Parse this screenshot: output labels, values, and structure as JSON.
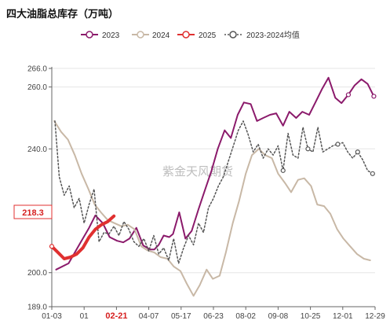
{
  "chart_data": {
    "type": "line",
    "title": "四大油脂总库存（万吨）",
    "watermark": "紫金天风期货",
    "ylim": [
      189,
      266
    ],
    "y_ticks": [
      189.0,
      200.0,
      240.0,
      260.0,
      266.0
    ],
    "x_tick_labels": [
      "01-03",
      "01",
      "02-21",
      "04-07",
      "05-17",
      "06-23",
      "08-02",
      "09-08",
      "10-25",
      "12-01",
      "12-29"
    ],
    "highlight_x_label": "02-21",
    "highlight_value_label": "218.3",
    "legend": [
      "2023",
      "2024",
      "2025",
      "2023-2024均值"
    ],
    "colors": {
      "2023": "#8b1a6b",
      "2024": "#c8b8a6",
      "2025": "#e03030",
      "avg": "#555555",
      "grid": "#e6e6e6",
      "axis": "#666666"
    },
    "x_domain": [
      0,
      52
    ],
    "series": [
      {
        "name": "2023",
        "x": [
          0.7,
          2.7,
          4.7,
          6,
          7,
          8.2,
          9.3,
          10.5,
          11.5,
          12.5,
          13.6,
          14.7,
          15.8,
          16.5,
          17.2,
          18,
          18.9,
          19.5,
          20.5,
          21.5,
          22.5,
          23.6,
          24.6,
          25.7,
          26.7,
          27.8,
          28.8,
          29.9,
          30.9,
          32,
          33,
          34,
          35.1,
          36.1,
          37.2,
          38.2,
          39.3,
          40.3,
          41.4,
          42.4,
          43.5,
          44.5,
          45.6,
          46.6,
          47.7,
          48.7,
          49.8,
          50.8,
          51.8
        ],
        "values": [
          201,
          203,
          210,
          214.5,
          218.5,
          216,
          211.5,
          210.3,
          209.8,
          211,
          214.5,
          208.8,
          207.5,
          207.5,
          209,
          212,
          211.5,
          212.5,
          219.5,
          211,
          213.5,
          220.5,
          226.5,
          233,
          240,
          246,
          243.5,
          251,
          255,
          254.5,
          249,
          250,
          251,
          251.5,
          247.5,
          252,
          250,
          252,
          251,
          255,
          259.5,
          263,
          256.5,
          254.8,
          257.5,
          260.5,
          262.5,
          261,
          257
        ]
      },
      {
        "name": "2024",
        "x": [
          0.4,
          1.5,
          2.6,
          3.7,
          4.8,
          5.9,
          6.9,
          7.9,
          9,
          10.1,
          11.2,
          12.2,
          13.3,
          14.4,
          15.4,
          16.5,
          17.5,
          18.6,
          19.6,
          20.7,
          21.7,
          22.8,
          23.8,
          24.9,
          25.9,
          27,
          28,
          29.1,
          30.1,
          31.2,
          32.2,
          33.3,
          34.3,
          35.4,
          36.4,
          37.5,
          38.5,
          39.6,
          40.6,
          41.7,
          42.7,
          43.8,
          44.8,
          45.9,
          46.9,
          48,
          49.1,
          50.2,
          51.2
        ],
        "values": [
          249,
          245.5,
          243,
          238,
          232,
          227,
          222,
          219.5,
          217,
          216,
          215,
          215.5,
          214,
          208.5,
          207.2,
          206.5,
          205,
          204.5,
          202,
          200.5,
          196.5,
          192.5,
          196,
          201,
          198,
          199,
          206.5,
          216,
          223,
          232,
          238,
          240,
          238,
          237,
          232,
          229,
          226,
          230,
          230.5,
          228,
          222,
          221.5,
          219,
          214,
          211,
          208.5,
          206,
          204.5,
          204
        ]
      },
      {
        "name": "2023-2024均值",
        "x": [
          0.5,
          1.2,
          2,
          2.8,
          3.6,
          4.4,
          5.2,
          6,
          6.8,
          7.6,
          8.4,
          9.2,
          10,
          10.8,
          11.6,
          12.4,
          13.2,
          14,
          14.8,
          15.6,
          16.4,
          17.2,
          18,
          18.8,
          19.6,
          20.4,
          21.2,
          22,
          22.8,
          23.6,
          24.4,
          25.2,
          26,
          26.8,
          27.6,
          28.4,
          29.2,
          30,
          30.8,
          31.6,
          32.4,
          33.2,
          34,
          34.8,
          35.6,
          36.4,
          37.2,
          38,
          38.8,
          39.6,
          40.4,
          41.2,
          42,
          42.8,
          43.6,
          44.4,
          45.2,
          46,
          46.8,
          47.6,
          48.4,
          49.2,
          50,
          50.8,
          51.6
        ],
        "values": [
          249,
          231,
          225,
          228,
          221,
          224,
          216,
          222,
          227,
          210,
          213,
          212.5,
          215,
          212,
          216.5,
          214,
          210,
          208.5,
          211,
          207,
          212,
          206,
          208,
          204,
          211,
          203,
          208,
          212,
          209,
          216,
          213,
          221,
          224,
          228,
          231,
          236,
          241,
          246,
          249,
          244.5,
          239,
          241.5,
          237,
          240,
          238,
          241,
          233,
          245,
          238,
          237,
          247,
          240,
          239,
          247,
          239,
          240,
          241,
          241.5,
          242,
          239,
          237,
          239,
          236.5,
          233,
          232
        ]
      },
      {
        "name": "2025",
        "x": [
          0,
          1,
          2,
          3,
          4,
          5,
          6,
          7,
          8,
          9,
          10
        ],
        "values": [
          208.5,
          206.5,
          204.5,
          205,
          206,
          208,
          211.5,
          214,
          215.5,
          216.5,
          218.3
        ]
      }
    ]
  }
}
